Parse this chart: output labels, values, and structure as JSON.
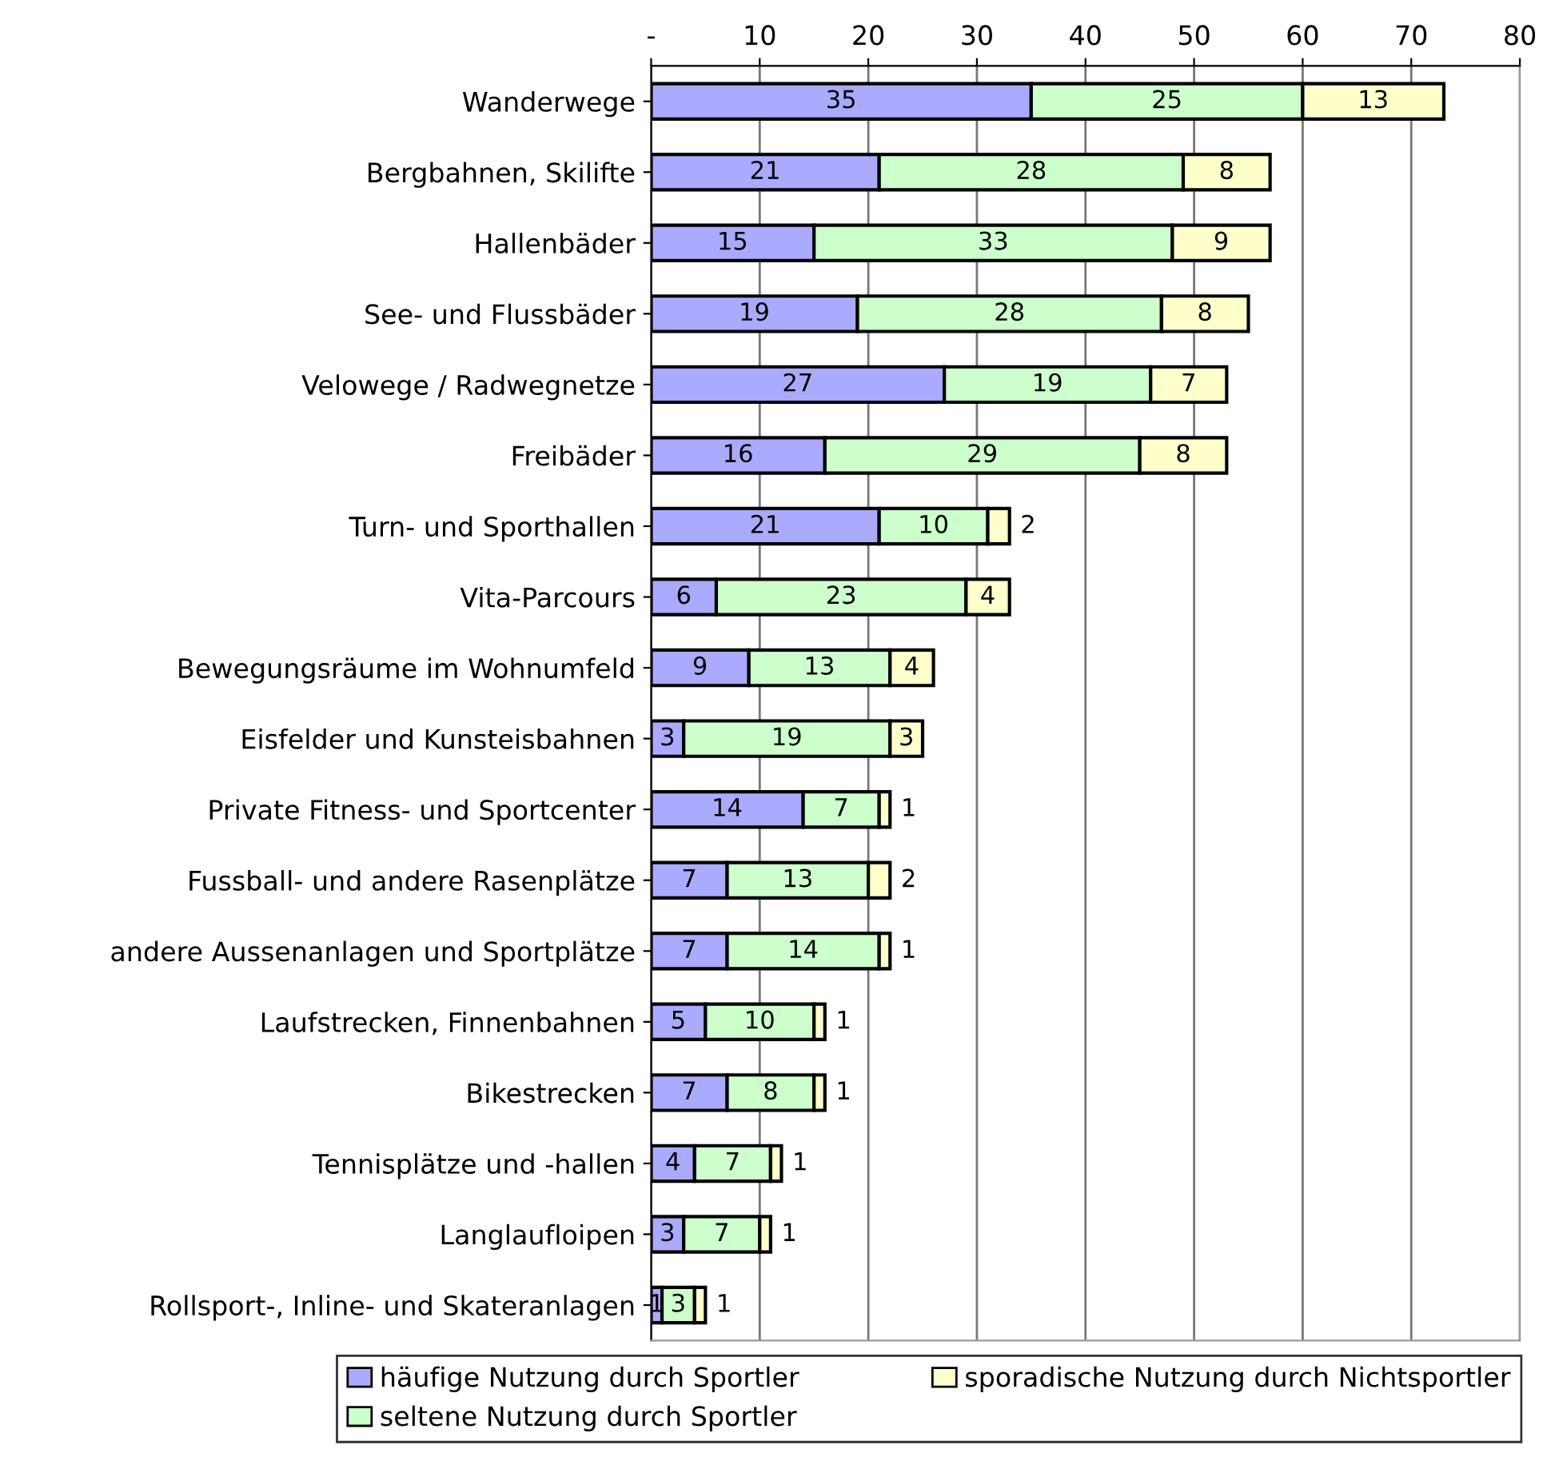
{
  "chart_data": {
    "type": "bar",
    "orientation": "horizontal",
    "stacked": true,
    "data_labels": true,
    "grid": "x",
    "legend": "bottom",
    "categories": [
      "Wanderwege",
      "Bergbahnen, Skilifte",
      "Hallenbäder",
      "See- und Flussbäder",
      "Velowege / Radwegnetze",
      "Freibäder",
      "Turn- und Sporthallen",
      "Vita-Parcours",
      "Bewegungsräume im Wohnumfeld",
      "Eisfelder und Kunsteisbahnen",
      "Private Fitness- und Sportcenter",
      "Fussball- und andere Rasenplätze",
      "andere Aussenanlagen und Sportplätze",
      "Laufstrecken, Finnenbahnen",
      "Bikestrecken",
      "Tennisplätze und -hallen",
      "Langlaufloipen",
      "Rollsport-, Inline- und Skateranlagen"
    ],
    "series": [
      {
        "name": "häufige Nutzung durch Sportler",
        "color": "#aaaaff",
        "values": [
          35,
          21,
          15,
          19,
          27,
          16,
          21,
          6,
          9,
          3,
          14,
          7,
          7,
          5,
          7,
          4,
          3,
          1
        ]
      },
      {
        "name": "seltene Nutzung durch Sportler",
        "color": "#ccffcc",
        "values": [
          25,
          28,
          33,
          28,
          19,
          29,
          10,
          23,
          13,
          19,
          7,
          13,
          14,
          10,
          8,
          7,
          7,
          3
        ]
      },
      {
        "name": "sporadische Nutzung durch Nichtsportler",
        "color": "#ffffcc",
        "values": [
          13,
          8,
          9,
          8,
          7,
          8,
          2,
          4,
          4,
          3,
          1,
          2,
          1,
          1,
          1,
          1,
          1,
          1
        ]
      }
    ],
    "xlim": [
      0,
      80
    ],
    "xticks": [
      {
        "value": 0,
        "label": "-"
      },
      10,
      20,
      30,
      40,
      50,
      60,
      70,
      80
    ]
  }
}
